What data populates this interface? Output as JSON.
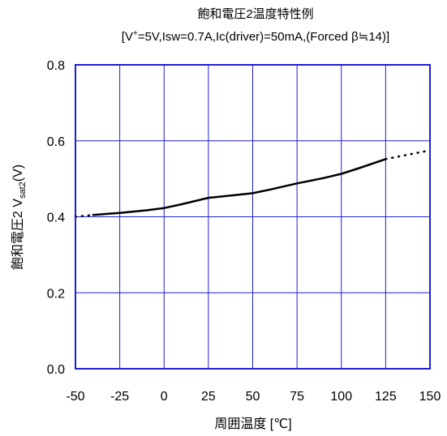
{
  "chart_data": {
    "type": "line",
    "title": "飽和電圧2温度特性例",
    "subtitle": {
      "prefix": "[V",
      "sup": "+",
      "rest": "=5V,Isw=0.7A,Ic(driver)=50mA,(Forced β≒14)]"
    },
    "xlabel": "周囲温度 [℃]",
    "ylabel": {
      "prefix": "飽和電圧2 V",
      "sub": "sat2",
      "suffix": "(V)"
    },
    "xlim": [
      -50,
      150
    ],
    "ylim": [
      0,
      0.8
    ],
    "x_ticks": [
      -50,
      -25,
      0,
      25,
      50,
      75,
      100,
      125,
      150
    ],
    "y_ticks": [
      0.0,
      0.2,
      0.4,
      0.6,
      0.8
    ],
    "y_tick_labels": [
      "0.0",
      "0.2",
      "0.4",
      "0.6",
      "0.8"
    ],
    "grid": true,
    "colors": {
      "axis": "#1f1fd0",
      "grid": "#1f1fd0",
      "line": "#000000"
    },
    "series": [
      {
        "style": "solid",
        "x": [
          -40,
          -25,
          -10,
          0,
          10,
          25,
          40,
          50,
          60,
          75,
          90,
          100,
          110,
          125
        ],
        "y": [
          0.405,
          0.41,
          0.417,
          0.423,
          0.433,
          0.45,
          0.457,
          0.462,
          0.472,
          0.488,
          0.502,
          0.513,
          0.528,
          0.552
        ]
      },
      {
        "style": "dotted",
        "x": [
          -50,
          -40
        ],
        "y": [
          0.4,
          0.405
        ]
      },
      {
        "style": "dotted",
        "x": [
          125,
          150
        ],
        "y": [
          0.552,
          0.575
        ]
      }
    ]
  }
}
